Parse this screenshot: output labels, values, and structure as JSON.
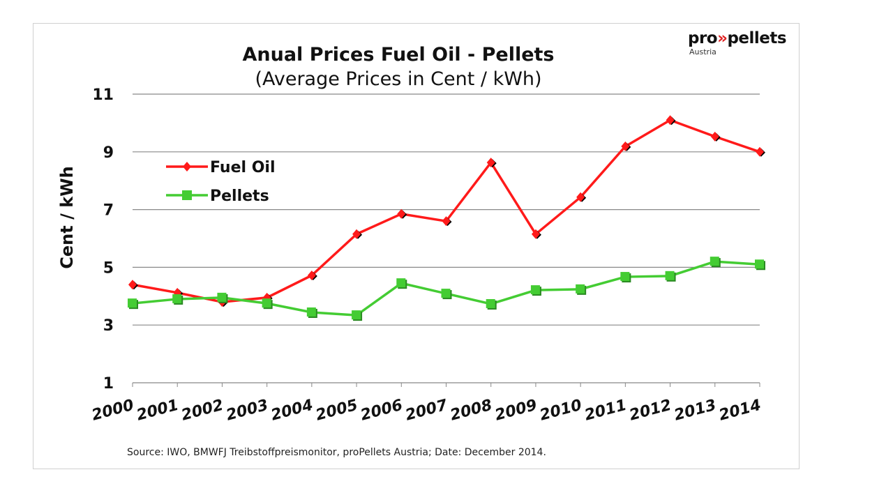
{
  "logo": {
    "prefix": "pro",
    "arrows": "»",
    "suffix": "pellets",
    "sub": "Austria"
  },
  "chart_data": {
    "type": "line",
    "title": "Anual Prices Fuel Oil - Pellets",
    "subtitle": "(Average Prices in Cent / kWh)",
    "xlabel": "",
    "ylabel": "Cent / kWh",
    "ylim": [
      1,
      11
    ],
    "yticks": [
      1,
      3,
      5,
      7,
      9,
      11
    ],
    "grid": true,
    "legend": "top-left",
    "x": [
      "2000",
      "2001",
      "2002",
      "2003",
      "2004",
      "2005",
      "2006",
      "2007",
      "2008",
      "2009",
      "2010",
      "2011",
      "2012",
      "2013",
      "2014"
    ],
    "series": [
      {
        "name": "Fuel Oil",
        "color": "#ff1a1a",
        "marker": "diamond",
        "values": [
          4.4,
          4.12,
          3.8,
          3.95,
          4.72,
          6.15,
          6.85,
          6.6,
          8.63,
          6.15,
          7.43,
          9.19,
          10.1,
          9.53,
          9.0
        ]
      },
      {
        "name": "Pellets",
        "color": "#44cc33",
        "marker": "square",
        "values": [
          3.75,
          3.9,
          3.95,
          3.75,
          3.44,
          3.34,
          4.45,
          4.09,
          3.73,
          4.21,
          4.24,
          4.67,
          4.7,
          5.2,
          5.1
        ]
      }
    ],
    "source": "Source: IWO, BMWFJ Treibstoffpreismonitor, proPellets Austria; Date: December 2014."
  }
}
